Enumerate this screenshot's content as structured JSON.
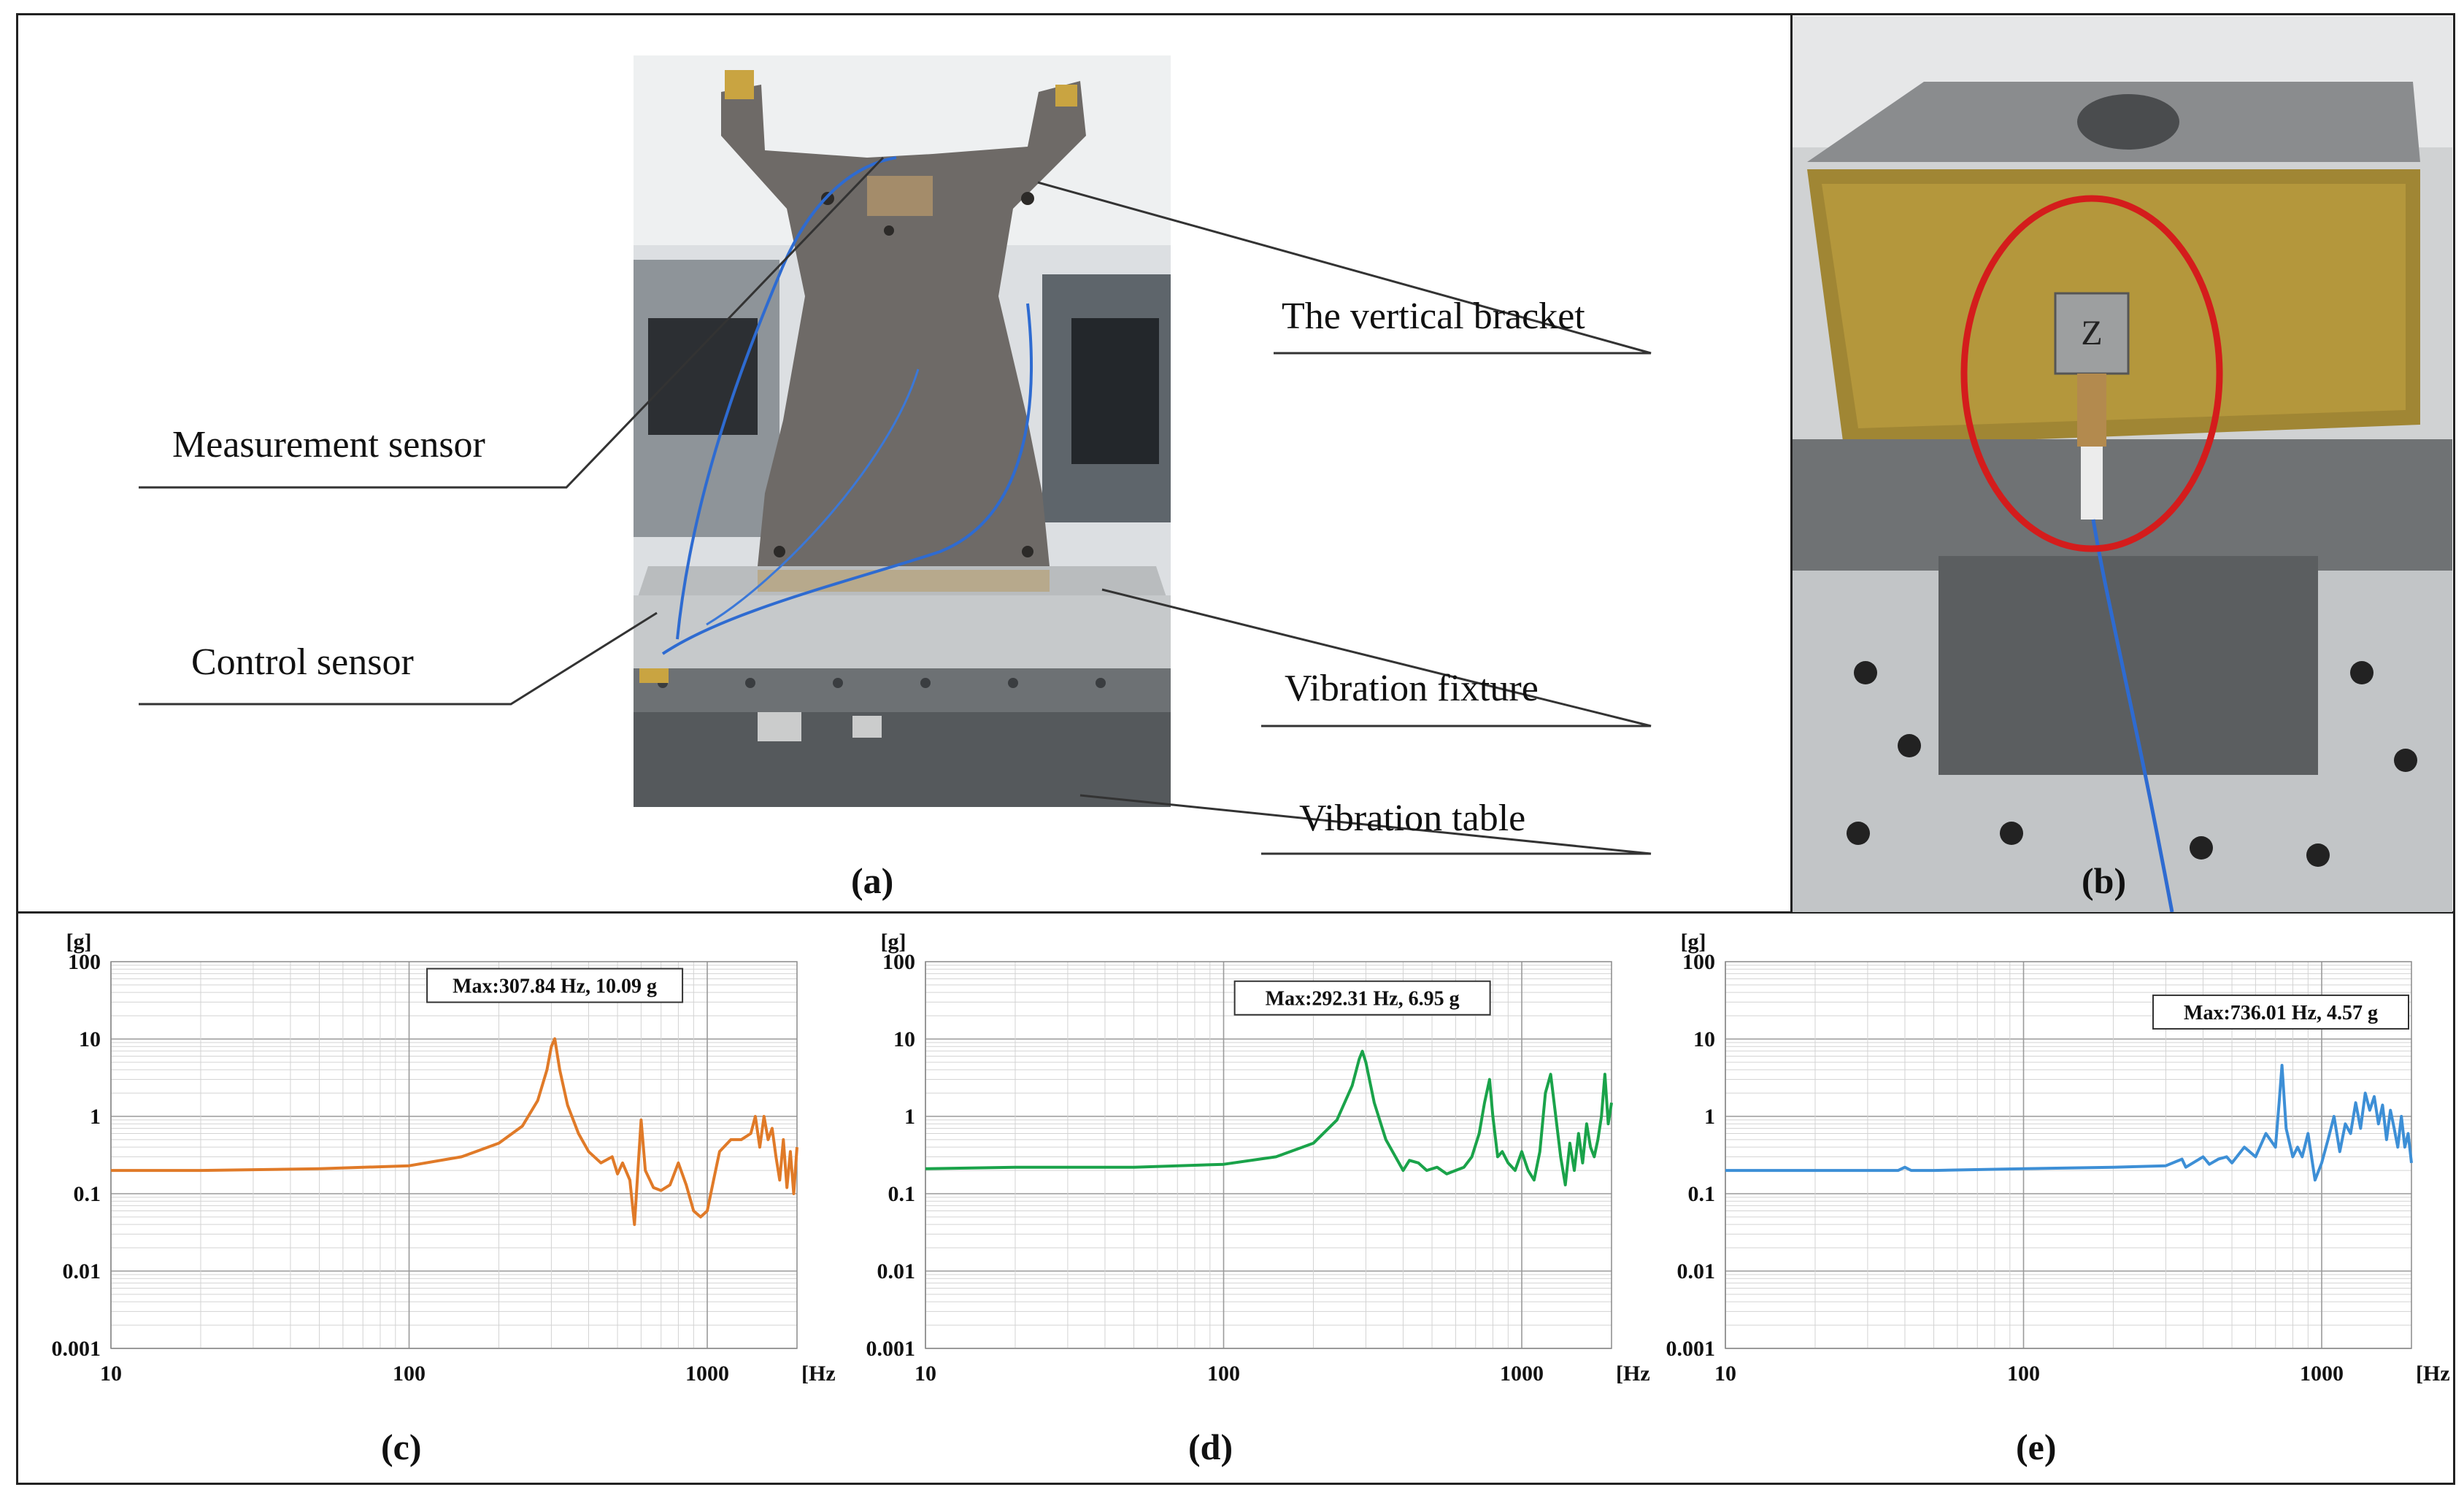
{
  "panel_labels": {
    "a": "(a)",
    "b": "(b)",
    "c": "(c)",
    "d": "(d)",
    "e": "(e)"
  },
  "callouts": {
    "measurement_sensor": "Measurement sensor",
    "control_sensor": "Control sensor",
    "vertical_bracket": "The vertical bracket",
    "vibration_fixture": "Vibration fixture",
    "vibration_table": "Vibration table"
  },
  "photo_b": {
    "sensor_label": "Z"
  },
  "colors": {
    "c": "#e07a28",
    "d": "#1aa34a",
    "e": "#3d8fd6",
    "marker": "#d41c1c"
  },
  "chart_data": [
    {
      "type": "line",
      "title": "",
      "xlabel": "[Hz]",
      "ylabel": "[g]",
      "x_scale": "log",
      "y_scale": "log",
      "xlim": [
        10,
        2000
      ],
      "ylim": [
        0.001,
        100
      ],
      "xticks": [
        "10",
        "100",
        "1000"
      ],
      "yticks": [
        "0.001",
        "0.01",
        "0.1",
        "1",
        "10",
        "100"
      ],
      "grid": true,
      "annotation": "Max:307.84 Hz, 10.09 g",
      "series": [
        {
          "color": "#e07a28",
          "x": [
            10,
            20,
            50,
            100,
            150,
            200,
            240,
            270,
            290,
            300,
            308,
            320,
            340,
            370,
            400,
            440,
            480,
            500,
            520,
            550,
            570,
            600,
            620,
            660,
            700,
            750,
            800,
            850,
            900,
            950,
            1000,
            1050,
            1100,
            1200,
            1300,
            1400,
            1450,
            1500,
            1550,
            1600,
            1650,
            1700,
            1750,
            1800,
            1850,
            1900,
            1950,
            2000
          ],
          "y": [
            0.2,
            0.2,
            0.21,
            0.23,
            0.3,
            0.45,
            0.75,
            1.6,
            4.0,
            8.0,
            10.09,
            4.0,
            1.4,
            0.6,
            0.35,
            0.25,
            0.3,
            0.18,
            0.25,
            0.15,
            0.04,
            0.9,
            0.2,
            0.12,
            0.11,
            0.13,
            0.25,
            0.13,
            0.06,
            0.05,
            0.06,
            0.15,
            0.35,
            0.5,
            0.5,
            0.6,
            1.0,
            0.4,
            1.0,
            0.5,
            0.7,
            0.3,
            0.15,
            0.5,
            0.12,
            0.35,
            0.1,
            0.4
          ]
        }
      ]
    },
    {
      "type": "line",
      "title": "",
      "xlabel": "[Hz]",
      "ylabel": "[g]",
      "x_scale": "log",
      "y_scale": "log",
      "xlim": [
        10,
        2000
      ],
      "ylim": [
        0.001,
        100
      ],
      "xticks": [
        "10",
        "100",
        "1000"
      ],
      "yticks": [
        "0.001",
        "0.01",
        "0.1",
        "1",
        "10",
        "100"
      ],
      "grid": true,
      "annotation": "Max:292.31 Hz, 6.95 g",
      "series": [
        {
          "color": "#1aa34a",
          "x": [
            10,
            20,
            50,
            100,
            150,
            200,
            240,
            270,
            285,
            292,
            300,
            320,
            350,
            400,
            420,
            450,
            480,
            520,
            560,
            600,
            640,
            680,
            720,
            750,
            780,
            800,
            830,
            860,
            900,
            950,
            1000,
            1050,
            1100,
            1150,
            1200,
            1250,
            1300,
            1350,
            1400,
            1450,
            1500,
            1550,
            1600,
            1650,
            1700,
            1750,
            1800,
            1850,
            1900,
            1950,
            2000
          ],
          "y": [
            0.21,
            0.22,
            0.22,
            0.24,
            0.3,
            0.45,
            0.9,
            2.5,
            5.5,
            6.95,
            5.0,
            1.5,
            0.5,
            0.2,
            0.27,
            0.25,
            0.2,
            0.22,
            0.18,
            0.2,
            0.22,
            0.3,
            0.6,
            1.5,
            3.0,
            1.0,
            0.3,
            0.35,
            0.25,
            0.2,
            0.35,
            0.2,
            0.15,
            0.35,
            2.0,
            3.5,
            1.0,
            0.3,
            0.13,
            0.45,
            0.2,
            0.6,
            0.25,
            0.8,
            0.4,
            0.3,
            0.5,
            1.0,
            3.5,
            0.8,
            1.5
          ]
        }
      ]
    },
    {
      "type": "line",
      "title": "",
      "xlabel": "[Hz]",
      "ylabel": "[g]",
      "x_scale": "log",
      "y_scale": "log",
      "xlim": [
        10,
        2000
      ],
      "ylim": [
        0.001,
        100
      ],
      "xticks": [
        "10",
        "100",
        "1000"
      ],
      "yticks": [
        "0.001",
        "0.01",
        "0.1",
        "1",
        "10",
        "100"
      ],
      "grid": true,
      "annotation": "Max:736.01 Hz, 4.57 g",
      "series": [
        {
          "color": "#3d8fd6",
          "x": [
            10,
            20,
            38,
            40,
            42,
            50,
            100,
            200,
            300,
            340,
            350,
            370,
            400,
            420,
            450,
            480,
            500,
            550,
            600,
            650,
            700,
            720,
            736,
            760,
            800,
            830,
            860,
            900,
            950,
            1000,
            1050,
            1100,
            1150,
            1200,
            1250,
            1300,
            1350,
            1400,
            1450,
            1500,
            1550,
            1600,
            1650,
            1700,
            1750,
            1800,
            1850,
            1900,
            1950,
            2000
          ],
          "y": [
            0.2,
            0.2,
            0.2,
            0.22,
            0.2,
            0.2,
            0.21,
            0.22,
            0.23,
            0.28,
            0.22,
            0.25,
            0.3,
            0.24,
            0.28,
            0.3,
            0.25,
            0.4,
            0.3,
            0.6,
            0.4,
            1.5,
            4.57,
            0.7,
            0.3,
            0.4,
            0.3,
            0.6,
            0.15,
            0.25,
            0.5,
            1.0,
            0.35,
            0.8,
            0.6,
            1.5,
            0.7,
            2.0,
            1.2,
            1.8,
            0.8,
            1.4,
            0.5,
            1.2,
            0.7,
            0.4,
            1.0,
            0.4,
            0.6,
            0.25
          ]
        }
      ]
    }
  ]
}
